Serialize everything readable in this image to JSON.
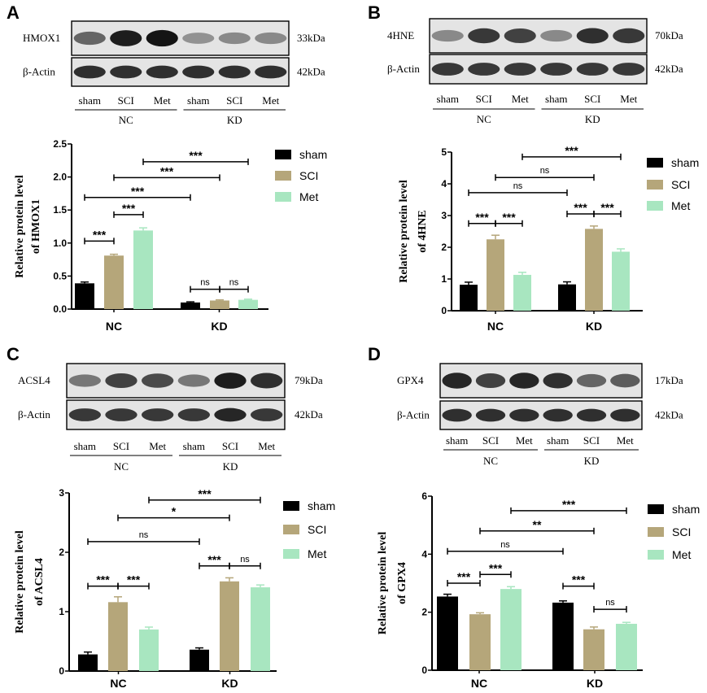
{
  "panels": [
    {
      "letter": "A",
      "blot": {
        "rows": [
          {
            "label": "HMOX1",
            "kda": "33kDa",
            "intensity": [
              0.55,
              0.95,
              1.0,
              0.3,
              0.35,
              0.35
            ]
          },
          {
            "label": "β-Actin",
            "kda": "42kDa",
            "intensity": [
              0.85,
              0.85,
              0.85,
              0.85,
              0.85,
              0.85
            ]
          }
        ],
        "lanes": [
          "sham",
          "SCI",
          "Met",
          "sham",
          "SCI",
          "Met"
        ],
        "groups": [
          "NC",
          "KD"
        ]
      },
      "chart_data": {
        "type": "bar",
        "categories": [
          "NC",
          "KD"
        ],
        "series": [
          {
            "name": "sham",
            "values": [
              0.39,
              0.1
            ],
            "errors": [
              0.02,
              0.01
            ]
          },
          {
            "name": "SCI",
            "values": [
              0.81,
              0.13
            ],
            "errors": [
              0.02,
              0.01
            ]
          },
          {
            "name": "Met",
            "values": [
              1.19,
              0.14
            ],
            "errors": [
              0.04,
              0.01
            ]
          }
        ],
        "ylabel_lines": [
          "Relative protein level",
          "of HMOX1"
        ],
        "ylim": [
          0,
          2.5
        ],
        "yticks": [
          "0.0",
          "0.5",
          "1.0",
          "1.5",
          "2.0",
          "2.5"
        ],
        "legend_position": "top-right",
        "significance": [
          {
            "from": [
              0,
              0
            ],
            "to": [
              0,
              1
            ],
            "y": 1.03,
            "label": "***"
          },
          {
            "from": [
              0,
              1
            ],
            "to": [
              0,
              2
            ],
            "y": 1.43,
            "label": "***"
          },
          {
            "from": [
              0,
              0
            ],
            "to": [
              1,
              0
            ],
            "y": 1.69,
            "label": "***"
          },
          {
            "from": [
              0,
              1
            ],
            "to": [
              1,
              1
            ],
            "y": 1.99,
            "label": "***"
          },
          {
            "from": [
              0,
              2
            ],
            "to": [
              1,
              2
            ],
            "y": 2.23,
            "label": "***"
          },
          {
            "from": [
              1,
              0
            ],
            "to": [
              1,
              1
            ],
            "y": 0.3,
            "label": "ns"
          },
          {
            "from": [
              1,
              1
            ],
            "to": [
              1,
              2
            ],
            "y": 0.3,
            "label": "ns"
          }
        ]
      }
    },
    {
      "letter": "B",
      "blot": {
        "rows": [
          {
            "label": "4HNE",
            "kda": "70kDa",
            "intensity": [
              0.35,
              0.8,
              0.75,
              0.35,
              0.85,
              0.8
            ]
          },
          {
            "label": "β-Actin",
            "kda": "42kDa",
            "intensity": [
              0.8,
              0.8,
              0.8,
              0.8,
              0.8,
              0.8
            ]
          }
        ],
        "lanes": [
          "sham",
          "SCI",
          "Met",
          "sham",
          "SCI",
          "Met"
        ],
        "groups": [
          "NC",
          "KD"
        ]
      },
      "chart_data": {
        "type": "bar",
        "categories": [
          "NC",
          "KD"
        ],
        "series": [
          {
            "name": "sham",
            "values": [
              0.82,
              0.83
            ],
            "errors": [
              0.08,
              0.08
            ]
          },
          {
            "name": "SCI",
            "values": [
              2.25,
              2.58
            ],
            "errors": [
              0.13,
              0.09
            ]
          },
          {
            "name": "Met",
            "values": [
              1.13,
              1.86
            ],
            "errors": [
              0.08,
              0.09
            ]
          }
        ],
        "ylabel_lines": [
          "Relative protein level",
          "of 4HNE"
        ],
        "ylim": [
          0,
          5
        ],
        "yticks": [
          "0",
          "1",
          "2",
          "3",
          "4",
          "5"
        ],
        "legend_position": "top-right",
        "significance": [
          {
            "from": [
              0,
              0
            ],
            "to": [
              0,
              1
            ],
            "y": 2.75,
            "label": "***"
          },
          {
            "from": [
              0,
              1
            ],
            "to": [
              0,
              2
            ],
            "y": 2.75,
            "label": "***"
          },
          {
            "from": [
              1,
              0
            ],
            "to": [
              1,
              1
            ],
            "y": 3.05,
            "label": "***"
          },
          {
            "from": [
              1,
              1
            ],
            "to": [
              1,
              2
            ],
            "y": 3.05,
            "label": "***"
          },
          {
            "from": [
              0,
              0
            ],
            "to": [
              1,
              0
            ],
            "y": 3.72,
            "label": "ns"
          },
          {
            "from": [
              0,
              1
            ],
            "to": [
              1,
              1
            ],
            "y": 4.2,
            "label": "ns"
          },
          {
            "from": [
              0,
              2
            ],
            "to": [
              1,
              2
            ],
            "y": 4.85,
            "label": "***"
          }
        ]
      }
    },
    {
      "letter": "C",
      "blot": {
        "rows": [
          {
            "label": "ACSL4",
            "kda": "79kDa",
            "intensity": [
              0.45,
              0.75,
              0.7,
              0.45,
              0.95,
              0.85
            ]
          },
          {
            "label": "β-Actin",
            "kda": "42kDa",
            "intensity": [
              0.8,
              0.8,
              0.8,
              0.8,
              0.9,
              0.8
            ]
          }
        ],
        "lanes": [
          "sham",
          "SCI",
          "Met",
          "sham",
          "SCI",
          "Met"
        ],
        "groups": [
          "NC",
          "KD"
        ]
      },
      "chart_data": {
        "type": "bar",
        "categories": [
          "NC",
          "KD"
        ],
        "series": [
          {
            "name": "sham",
            "values": [
              0.28,
              0.36
            ],
            "errors": [
              0.04,
              0.03
            ]
          },
          {
            "name": "SCI",
            "values": [
              1.16,
              1.51
            ],
            "errors": [
              0.09,
              0.06
            ]
          },
          {
            "name": "Met",
            "values": [
              0.7,
              1.41
            ],
            "errors": [
              0.04,
              0.04
            ]
          }
        ],
        "ylabel_lines": [
          "Relative protein level",
          "of ACSL4"
        ],
        "ylim": [
          0,
          3
        ],
        "yticks": [
          "0",
          "1",
          "2",
          "3"
        ],
        "legend_position": "top-right",
        "significance": [
          {
            "from": [
              0,
              0
            ],
            "to": [
              0,
              1
            ],
            "y": 1.43,
            "label": "***"
          },
          {
            "from": [
              0,
              1
            ],
            "to": [
              0,
              2
            ],
            "y": 1.43,
            "label": "***"
          },
          {
            "from": [
              1,
              0
            ],
            "to": [
              1,
              1
            ],
            "y": 1.77,
            "label": "***"
          },
          {
            "from": [
              1,
              1
            ],
            "to": [
              1,
              2
            ],
            "y": 1.77,
            "label": "ns"
          },
          {
            "from": [
              0,
              0
            ],
            "to": [
              1,
              0
            ],
            "y": 2.18,
            "label": "ns"
          },
          {
            "from": [
              0,
              1
            ],
            "to": [
              1,
              1
            ],
            "y": 2.58,
            "label": "*"
          },
          {
            "from": [
              0,
              2
            ],
            "to": [
              1,
              2
            ],
            "y": 2.88,
            "label": "***"
          }
        ]
      }
    },
    {
      "letter": "D",
      "blot": {
        "rows": [
          {
            "label": "GPX4",
            "kda": "17kDa",
            "intensity": [
              0.9,
              0.75,
              0.9,
              0.85,
              0.55,
              0.6
            ]
          },
          {
            "label": "β-Actin",
            "kda": "42kDa",
            "intensity": [
              0.85,
              0.85,
              0.85,
              0.85,
              0.85,
              0.85
            ]
          }
        ],
        "lanes": [
          "sham",
          "SCI",
          "Met",
          "sham",
          "SCI",
          "Met"
        ],
        "groups": [
          "NC",
          "KD"
        ]
      },
      "chart_data": {
        "type": "bar",
        "categories": [
          "NC",
          "KD"
        ],
        "series": [
          {
            "name": "sham",
            "values": [
              2.54,
              2.33
            ],
            "errors": [
              0.08,
              0.06
            ]
          },
          {
            "name": "SCI",
            "values": [
              1.93,
              1.41
            ],
            "errors": [
              0.05,
              0.08
            ]
          },
          {
            "name": "Met",
            "values": [
              2.8,
              1.6
            ],
            "errors": [
              0.08,
              0.05
            ]
          }
        ],
        "ylabel_lines": [
          "Relative protein level",
          "of GPX4"
        ],
        "ylim": [
          0,
          6
        ],
        "yticks": [
          "0",
          "2",
          "4",
          "6"
        ],
        "legend_position": "top-right",
        "significance": [
          {
            "from": [
              0,
              0
            ],
            "to": [
              0,
              1
            ],
            "y": 3.0,
            "label": "***"
          },
          {
            "from": [
              0,
              1
            ],
            "to": [
              0,
              2
            ],
            "y": 3.3,
            "label": "***"
          },
          {
            "from": [
              1,
              0
            ],
            "to": [
              1,
              1
            ],
            "y": 2.9,
            "label": "***"
          },
          {
            "from": [
              1,
              1
            ],
            "to": [
              1,
              2
            ],
            "y": 2.1,
            "label": "ns"
          },
          {
            "from": [
              0,
              0
            ],
            "to": [
              1,
              0
            ],
            "y": 4.1,
            "label": "ns"
          },
          {
            "from": [
              0,
              1
            ],
            "to": [
              1,
              1
            ],
            "y": 4.8,
            "label": "**"
          },
          {
            "from": [
              0,
              2
            ],
            "to": [
              1,
              2
            ],
            "y": 5.5,
            "label": "***"
          }
        ]
      }
    }
  ],
  "colors": {
    "sham": "#000000",
    "SCI": "#b5a67a",
    "Met": "#a8e6c0"
  }
}
